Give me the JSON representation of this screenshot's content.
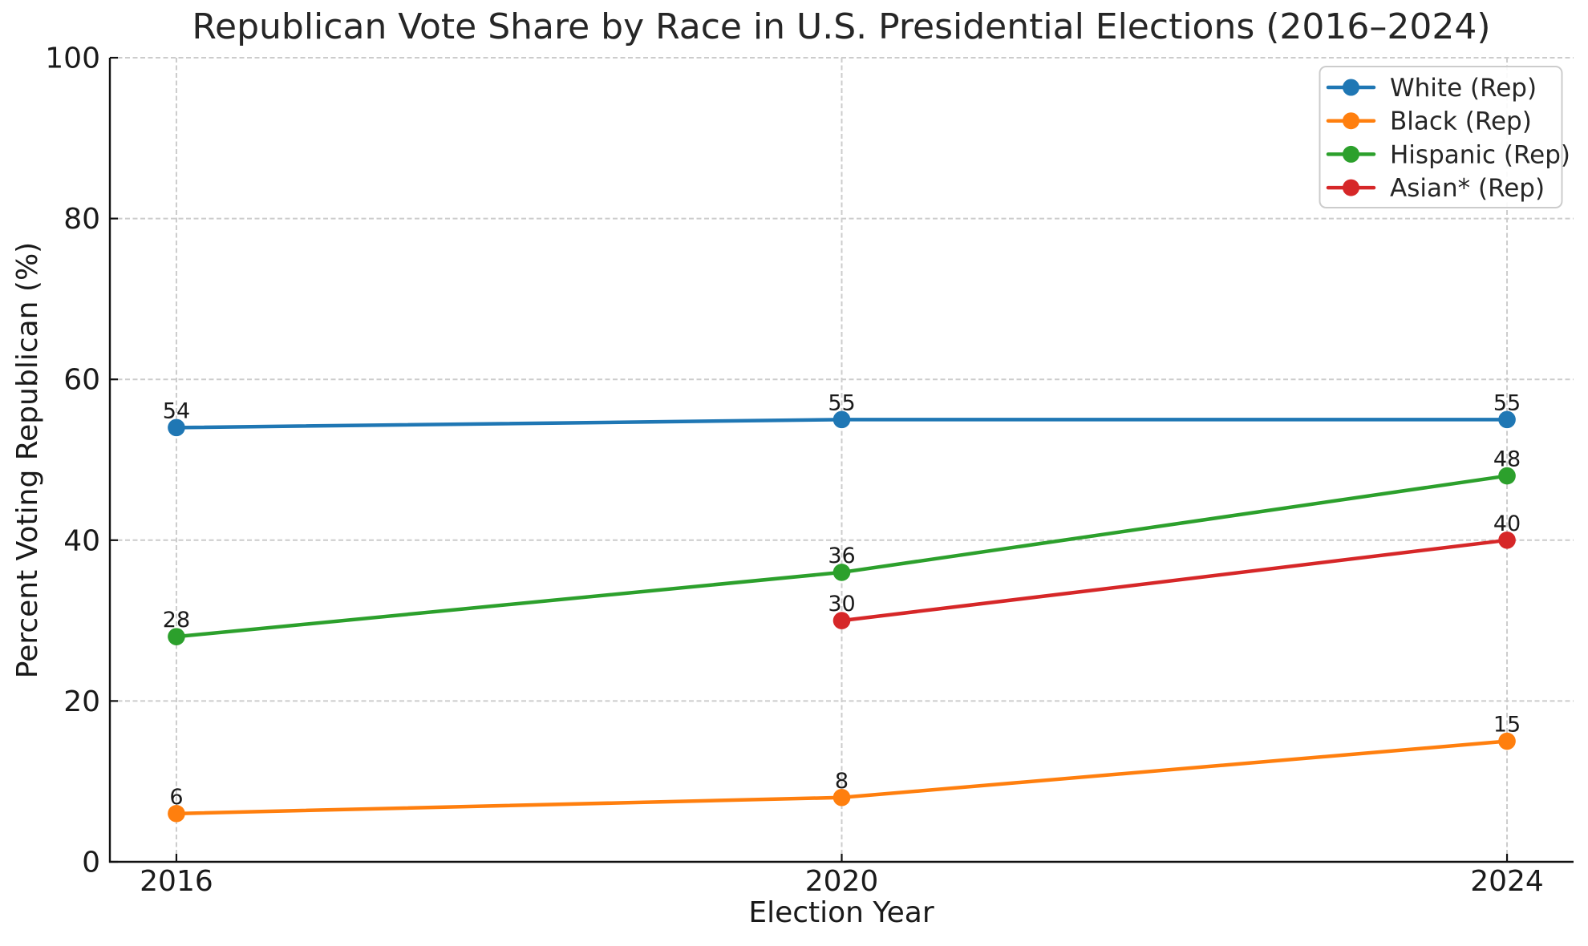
{
  "chart_data": {
    "type": "line",
    "title": "Republican Vote Share by Race in U.S. Presidential Elections (2016–2024)",
    "xlabel": "Election Year",
    "ylabel": "Percent Voting Republican (%)",
    "x_ticks": [
      2016,
      2020,
      2024
    ],
    "y_ticks": [
      0,
      20,
      40,
      60,
      80,
      100
    ],
    "xlim": [
      2015.6,
      2024.4
    ],
    "ylim": [
      0,
      100
    ],
    "grid": "dashed, both axes",
    "legend_position": "upper right",
    "point_labels_visible": true,
    "series": [
      {
        "name": "White (Rep)",
        "color": "#1f77b4",
        "x": [
          2016,
          2020,
          2024
        ],
        "values": [
          54,
          55,
          55
        ]
      },
      {
        "name": "Black (Rep)",
        "color": "#ff7f0e",
        "x": [
          2016,
          2020,
          2024
        ],
        "values": [
          6,
          8,
          15
        ]
      },
      {
        "name": "Hispanic (Rep)",
        "color": "#2ca02c",
        "x": [
          2016,
          2020,
          2024
        ],
        "values": [
          28,
          36,
          48
        ]
      },
      {
        "name": "Asian* (Rep)",
        "color": "#d62728",
        "x": [
          2020,
          2024
        ],
        "values": [
          30,
          40
        ]
      }
    ]
  },
  "colors": {
    "background": "#ffffff",
    "grid": "#cccccc",
    "spine": "#111111",
    "tick_text": "#1a1a1a",
    "title_text": "#262626",
    "annotation_text": "#1a1a1a",
    "legend_border": "#cccccc",
    "legend_background": "#ffffff"
  }
}
